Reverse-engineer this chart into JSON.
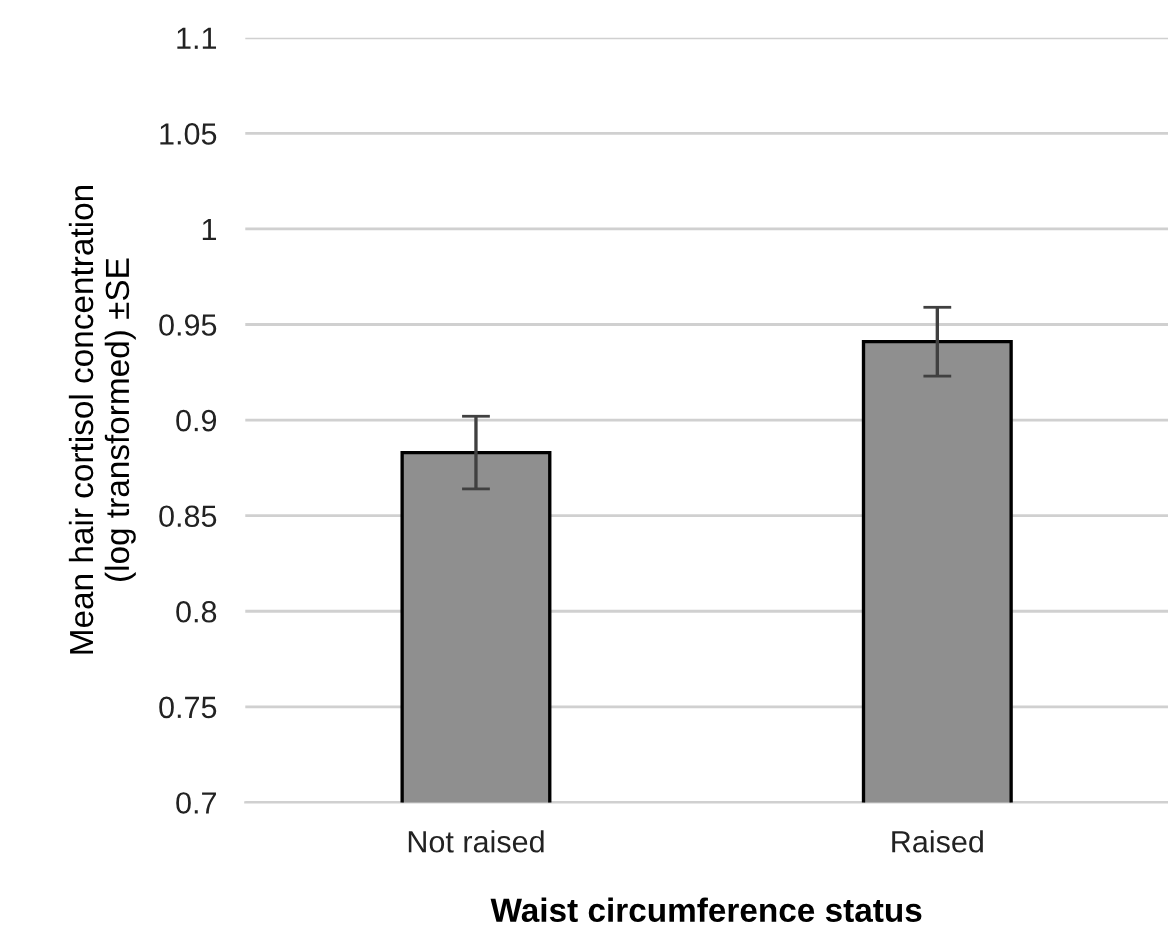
{
  "chart_data": {
    "type": "bar",
    "xlabel": "Waist circumference status",
    "ylabel": "Mean hair cortisol concentration\n(log transformed) ±SE",
    "categories": [
      "Not raised",
      "Raised"
    ],
    "values": [
      0.883,
      0.941
    ],
    "errors": [
      0.019,
      0.018
    ],
    "color": "#8f8f8f",
    "ylim": [
      0.7,
      1.1
    ],
    "yticks": [
      0.7,
      0.75,
      0.8,
      0.85,
      0.9,
      0.95,
      1,
      1.05,
      1.1
    ],
    "grid": "y",
    "legend": false
  }
}
